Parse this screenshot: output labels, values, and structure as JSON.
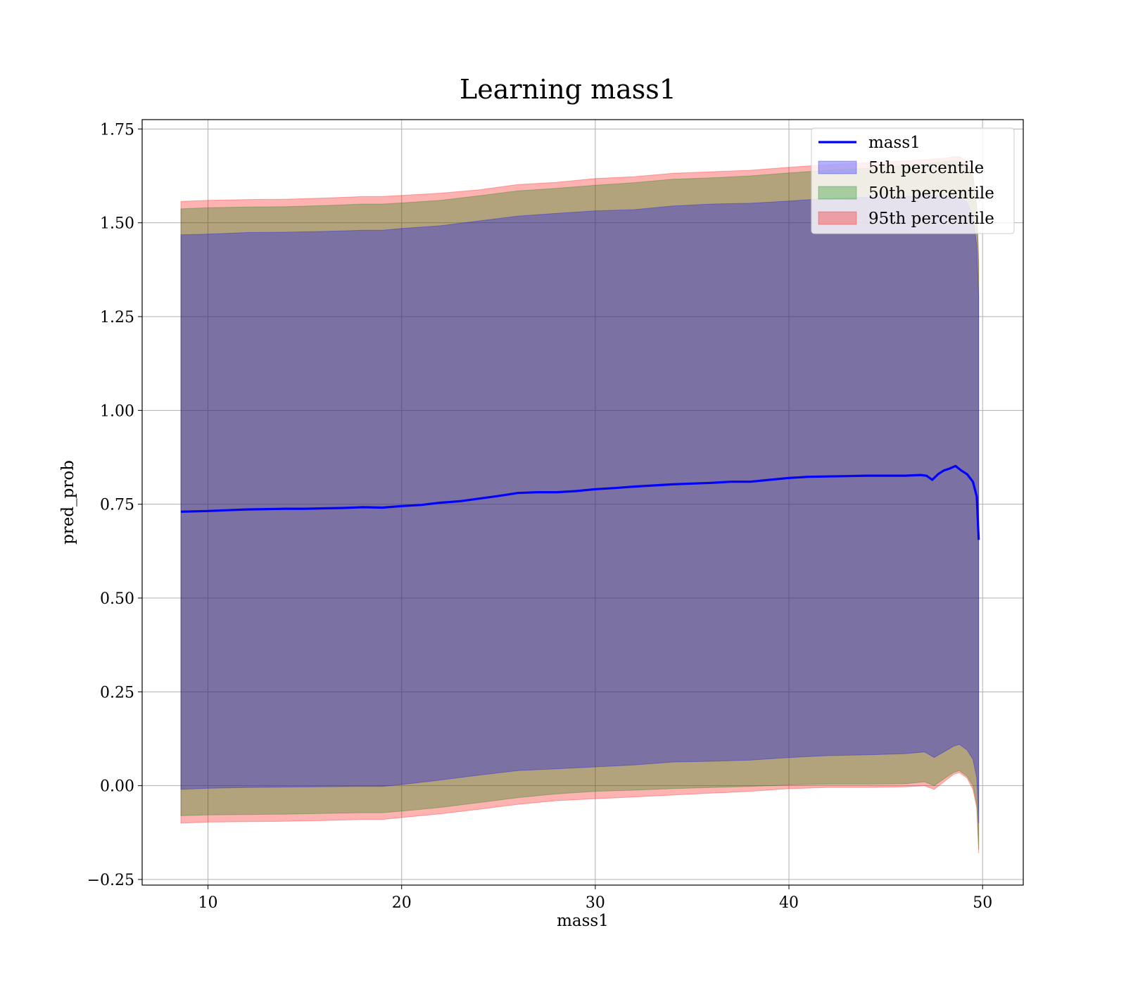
{
  "chart_data": {
    "type": "area",
    "title": "Learning mass1",
    "xlabel": "mass1",
    "ylabel": "pred_prob",
    "xlim": [
      6.6,
      52.1
    ],
    "ylim": [
      -0.265,
      1.775
    ],
    "xticks": [
      10,
      20,
      30,
      40,
      50
    ],
    "yticks": [
      -0.25,
      0.0,
      0.25,
      0.5,
      0.75,
      1.0,
      1.25,
      1.5,
      1.75
    ],
    "ytick_labels": [
      "−0.25",
      "0.00",
      "0.25",
      "0.50",
      "0.75",
      "1.00",
      "1.25",
      "1.50",
      "1.75"
    ],
    "grid": true,
    "legend_position": "top-right",
    "line": {
      "name": "mass1",
      "color": "#0000ff",
      "x": [
        8.6,
        10,
        11,
        12,
        13,
        14,
        15,
        16,
        17,
        18,
        19,
        20,
        21,
        22,
        23,
        24,
        25,
        26,
        27,
        28,
        29,
        30,
        31,
        32,
        33,
        34,
        35,
        36,
        37,
        38,
        39,
        40,
        41,
        42,
        43,
        44,
        45,
        46,
        46.8,
        47.1,
        47.4,
        47.7,
        48.0,
        48.3,
        48.6,
        48.9,
        49.2,
        49.5,
        49.7,
        49.8
      ],
      "y": [
        0.73,
        0.732,
        0.734,
        0.736,
        0.737,
        0.738,
        0.738,
        0.739,
        0.74,
        0.742,
        0.741,
        0.745,
        0.748,
        0.754,
        0.758,
        0.765,
        0.772,
        0.78,
        0.782,
        0.782,
        0.785,
        0.79,
        0.793,
        0.797,
        0.8,
        0.803,
        0.805,
        0.807,
        0.81,
        0.81,
        0.815,
        0.82,
        0.823,
        0.824,
        0.825,
        0.826,
        0.826,
        0.826,
        0.828,
        0.826,
        0.815,
        0.83,
        0.84,
        0.845,
        0.852,
        0.84,
        0.83,
        0.81,
        0.77,
        0.655
      ]
    },
    "bands": [
      {
        "name": "95th percentile",
        "color": "#ff0000",
        "x": [
          8.6,
          10,
          12,
          14,
          16,
          18,
          19,
          20,
          22,
          24,
          26,
          28,
          30,
          32,
          34,
          36,
          38,
          40,
          42,
          44,
          46,
          47,
          47.5,
          48,
          48.5,
          48.8,
          49.2,
          49.5,
          49.7,
          49.8
        ],
        "upper": [
          1.557,
          1.56,
          1.562,
          1.563,
          1.566,
          1.57,
          1.57,
          1.573,
          1.579,
          1.588,
          1.602,
          1.608,
          1.618,
          1.623,
          1.632,
          1.636,
          1.64,
          1.648,
          1.655,
          1.66,
          1.665,
          1.668,
          1.67,
          1.672,
          1.676,
          1.676,
          1.664,
          1.63,
          1.55,
          1.4
        ],
        "lower": [
          -0.1,
          -0.097,
          -0.096,
          -0.095,
          -0.093,
          -0.09,
          -0.09,
          -0.085,
          -0.075,
          -0.063,
          -0.05,
          -0.04,
          -0.035,
          -0.03,
          -0.025,
          -0.02,
          -0.015,
          -0.008,
          -0.005,
          -0.005,
          -0.003,
          0.0,
          -0.01,
          0.01,
          0.03,
          0.035,
          0.02,
          -0.01,
          -0.06,
          -0.18
        ]
      },
      {
        "name": "50th percentile",
        "color": "#008000",
        "x": [
          8.6,
          10,
          12,
          14,
          16,
          18,
          19,
          20,
          22,
          24,
          26,
          28,
          30,
          32,
          34,
          36,
          38,
          40,
          42,
          44,
          46,
          47,
          47.5,
          48,
          48.5,
          48.8,
          49.2,
          49.5,
          49.7,
          49.8
        ],
        "upper": [
          1.537,
          1.54,
          1.542,
          1.543,
          1.546,
          1.55,
          1.55,
          1.553,
          1.56,
          1.572,
          1.585,
          1.592,
          1.6,
          1.607,
          1.616,
          1.62,
          1.625,
          1.633,
          1.64,
          1.645,
          1.652,
          1.656,
          1.66,
          1.663,
          1.665,
          1.665,
          1.655,
          1.62,
          1.54,
          1.39
        ],
        "lower": [
          -0.08,
          -0.078,
          -0.077,
          -0.076,
          -0.074,
          -0.072,
          -0.072,
          -0.068,
          -0.058,
          -0.045,
          -0.032,
          -0.022,
          -0.015,
          -0.012,
          -0.008,
          -0.005,
          -0.002,
          0.002,
          0.004,
          0.004,
          0.005,
          0.01,
          0.0,
          0.018,
          0.035,
          0.04,
          0.025,
          0.0,
          -0.05,
          -0.17
        ]
      },
      {
        "name": "5th percentile",
        "color": "#0000ff",
        "x": [
          8.6,
          10,
          12,
          14,
          16,
          18,
          19,
          20,
          22,
          24,
          26,
          28,
          30,
          32,
          34,
          36,
          38,
          40,
          42,
          44,
          46,
          47,
          47.5,
          48,
          48.5,
          48.8,
          49.2,
          49.5,
          49.7,
          49.8
        ],
        "upper": [
          1.468,
          1.47,
          1.474,
          1.475,
          1.477,
          1.48,
          1.48,
          1.485,
          1.492,
          1.505,
          1.518,
          1.525,
          1.532,
          1.535,
          1.545,
          1.55,
          1.552,
          1.558,
          1.565,
          1.568,
          1.57,
          1.572,
          1.572,
          1.571,
          1.57,
          1.568,
          1.555,
          1.52,
          1.44,
          1.3
        ],
        "lower": [
          -0.01,
          -0.007,
          -0.005,
          -0.004,
          -0.003,
          -0.002,
          -0.002,
          0.003,
          0.015,
          0.028,
          0.04,
          0.045,
          0.05,
          0.055,
          0.063,
          0.065,
          0.068,
          0.075,
          0.08,
          0.082,
          0.085,
          0.09,
          0.075,
          0.09,
          0.105,
          0.11,
          0.095,
          0.07,
          0.02,
          -0.1
        ]
      }
    ],
    "legend": [
      {
        "label": "mass1",
        "kind": "line",
        "color": "#0000ff"
      },
      {
        "label": "5th percentile",
        "kind": "patch",
        "color": "#0000ff"
      },
      {
        "label": "50th percentile",
        "kind": "patch",
        "color": "#008000"
      },
      {
        "label": "95th percentile",
        "kind": "patch",
        "color": "#ff0000"
      }
    ]
  }
}
